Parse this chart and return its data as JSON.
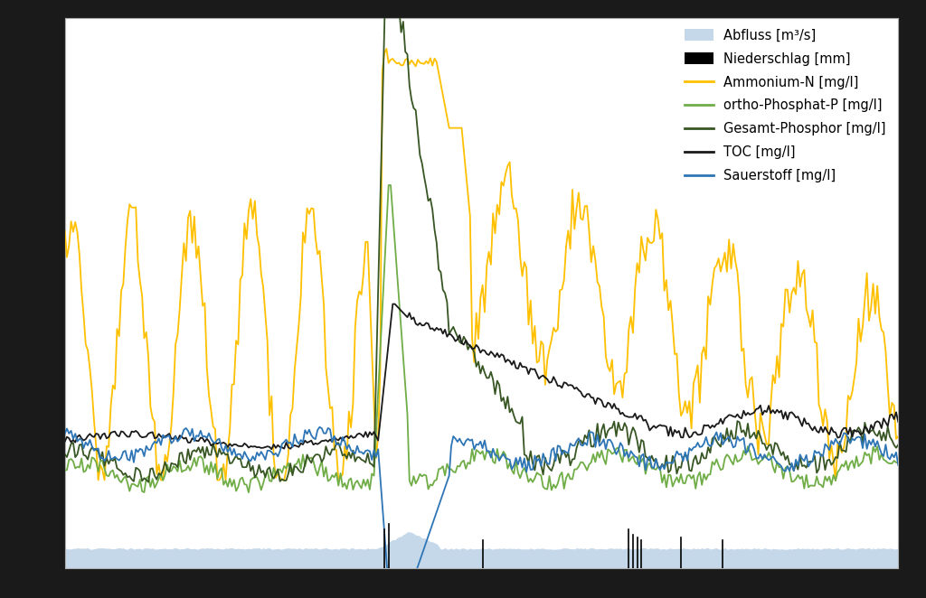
{
  "legend_labels": [
    "Abfluss [m³/s]",
    "Niederschlag [mm]",
    "Ammonium-N [mg/l]",
    "ortho-Phosphat-P [mg/l]",
    "Gesamt-Phosphor [mg/l]",
    "TOC [mg/l]",
    "Sauerstoff [mg/l]"
  ],
  "colors": {
    "abfluss": "#c5d8ea",
    "niederschlag": "#000000",
    "ammonium": "#ffc000",
    "ortho_phosphat": "#70ad47",
    "gesamt_phosphor": "#375623",
    "toc": "#1a1a1a",
    "sauerstoff": "#2e75b6"
  },
  "outer_bg": "#1a1a1a",
  "plot_bg": "#ffffff",
  "figsize": [
    10.24,
    6.62
  ],
  "dpi": 100
}
